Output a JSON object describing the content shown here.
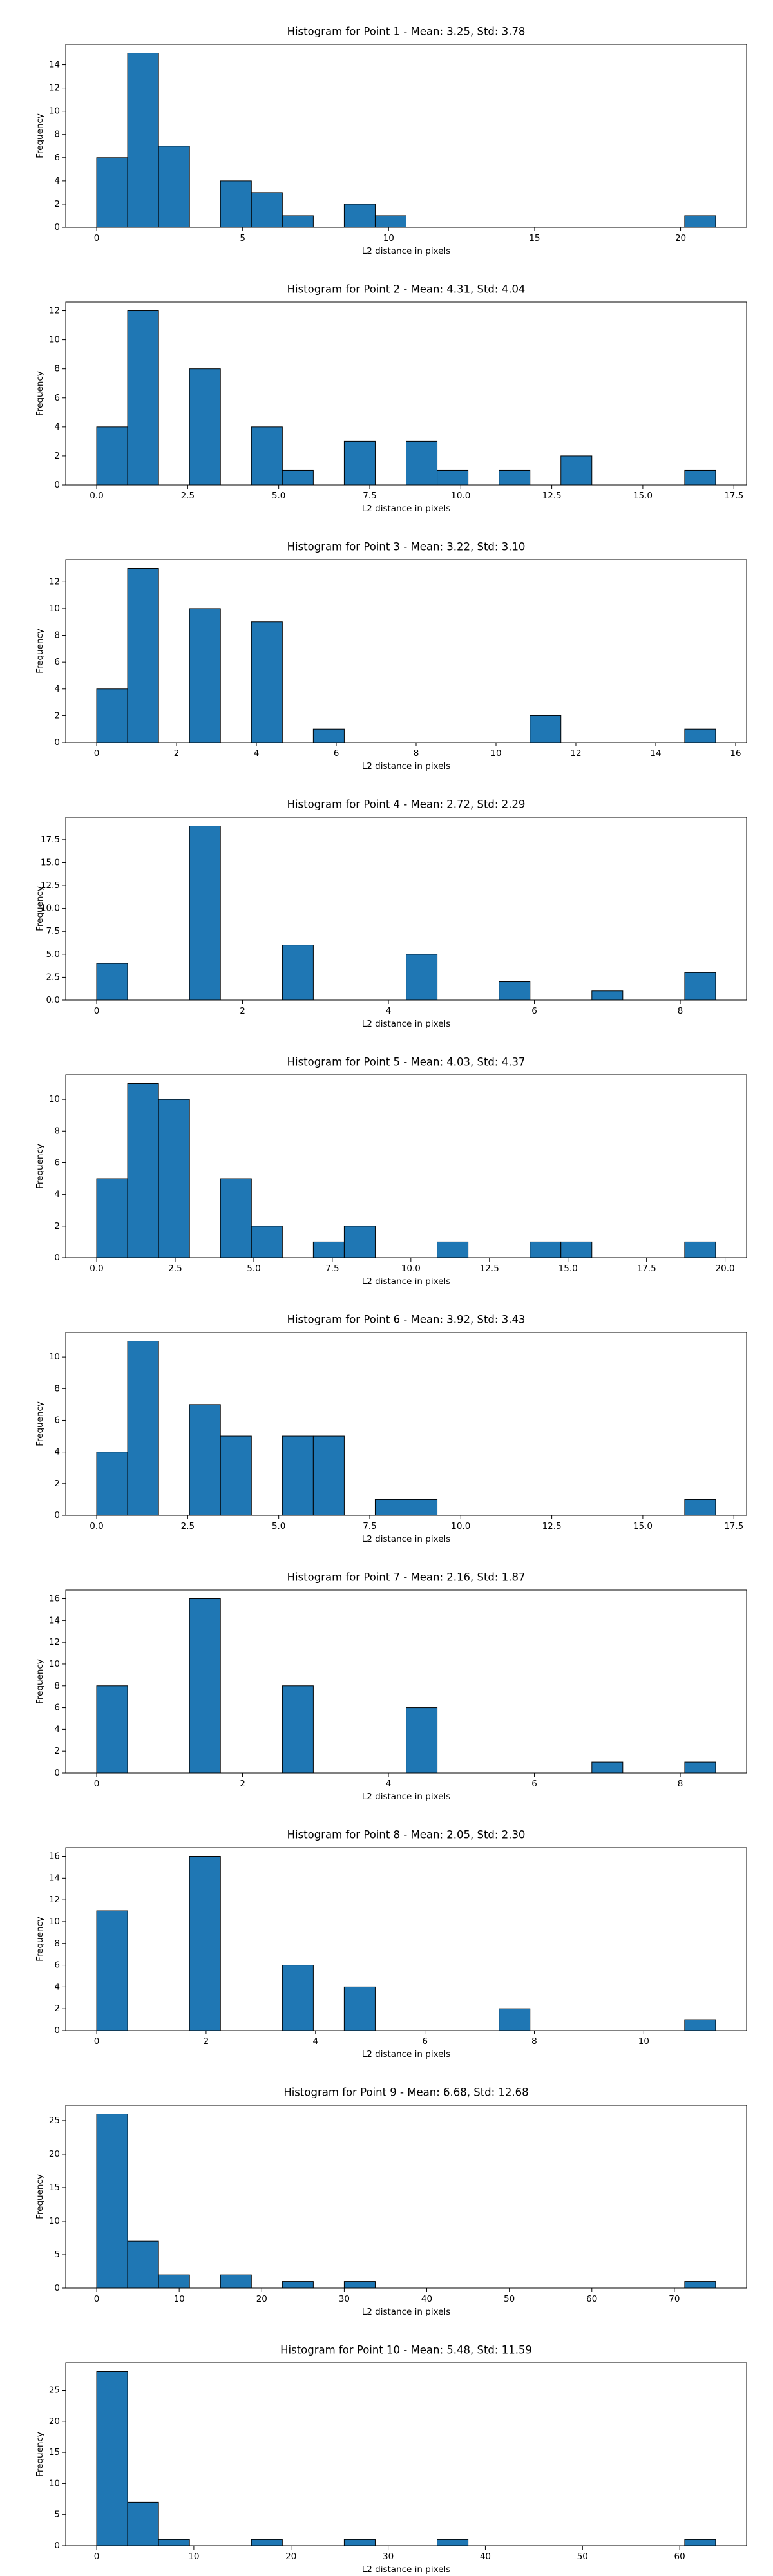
{
  "chart_data": [
    {
      "type": "histogram",
      "title": "Histogram for Point 1 - Mean: 3.25, Std: 3.78",
      "xlabel": "L2 distance in pixels",
      "ylabel": "Frequency",
      "color": "#1f77b4",
      "bins": [
        0,
        1.06,
        2.12,
        3.18,
        4.24,
        5.3,
        6.36,
        7.42,
        8.48,
        9.54,
        10.6,
        11.66,
        12.72,
        13.78,
        14.84,
        15.9,
        16.96,
        18.02,
        19.08,
        20.14,
        21.2
      ],
      "values": [
        6,
        15,
        7,
        0,
        4,
        3,
        1,
        0,
        2,
        1,
        0,
        0,
        0,
        0,
        0,
        0,
        0,
        0,
        0,
        1
      ],
      "xlim": [
        -1.06,
        22.26
      ],
      "xticks": [
        0,
        5,
        10,
        15,
        20
      ],
      "ylim": [
        0,
        15.75
      ],
      "yticks": [
        0,
        2,
        4,
        6,
        8,
        10,
        12,
        14
      ]
    },
    {
      "type": "histogram",
      "title": "Histogram for Point 2 - Mean: 4.31, Std: 4.04",
      "xlabel": "L2 distance in pixels",
      "ylabel": "Frequency",
      "color": "#1f77b4",
      "bins": [
        0,
        0.85,
        1.7,
        2.55,
        3.4,
        4.25,
        5.1,
        5.95,
        6.8,
        7.65,
        8.5,
        9.35,
        10.2,
        11.05,
        11.9,
        12.75,
        13.6,
        14.45,
        15.3,
        16.15,
        17
      ],
      "values": [
        4,
        12,
        0,
        8,
        0,
        4,
        1,
        0,
        3,
        0,
        3,
        1,
        0,
        1,
        0,
        2,
        0,
        0,
        0,
        1
      ],
      "xlim": [
        -0.85,
        17.85
      ],
      "xticks": [
        {
          "value": 0,
          "label": "0.0"
        },
        2.5,
        {
          "value": 5,
          "label": "5.0"
        },
        7.5,
        {
          "value": 10,
          "label": "10.0"
        },
        12.5,
        {
          "value": 15,
          "label": "15.0"
        },
        17.5
      ],
      "ylim": [
        0,
        12.6
      ],
      "yticks": [
        0,
        2,
        4,
        6,
        8,
        10,
        12
      ]
    },
    {
      "type": "histogram",
      "title": "Histogram for Point 3 - Mean: 3.22, Std: 3.10",
      "xlabel": "L2 distance in pixels",
      "ylabel": "Frequency",
      "color": "#1f77b4",
      "bins": [
        0,
        0.775,
        1.55,
        2.325,
        3.1,
        3.875,
        4.65,
        5.425,
        6.2,
        6.975,
        7.75,
        8.525,
        9.3,
        10.075,
        10.85,
        11.625,
        12.4,
        13.175,
        13.95,
        14.725,
        15.5
      ],
      "values": [
        4,
        13,
        0,
        10,
        0,
        9,
        0,
        1,
        0,
        0,
        0,
        0,
        0,
        0,
        2,
        0,
        0,
        0,
        0,
        1
      ],
      "xlim": [
        -0.775,
        16.275
      ],
      "xticks": [
        0,
        2,
        4,
        6,
        8,
        10,
        12,
        14,
        16
      ],
      "ylim": [
        0,
        13.65
      ],
      "yticks": [
        0,
        2,
        4,
        6,
        8,
        10,
        12
      ]
    },
    {
      "type": "histogram",
      "title": "Histogram for Point 4 - Mean: 2.72, Std: 2.29",
      "xlabel": "L2 distance in pixels",
      "ylabel": "Frequency",
      "color": "#1f77b4",
      "bins": [
        0,
        0.424,
        0.849,
        1.273,
        1.697,
        2.121,
        2.546,
        2.97,
        3.394,
        3.818,
        4.243,
        4.667,
        5.091,
        5.515,
        5.94,
        6.364,
        6.788,
        7.212,
        7.637,
        8.061,
        8.485
      ],
      "values": [
        4,
        0,
        0,
        19,
        0,
        0,
        6,
        0,
        0,
        0,
        5,
        0,
        0,
        2,
        0,
        0,
        1,
        0,
        0,
        3
      ],
      "xlim": [
        -0.424,
        8.909
      ],
      "xticks": [
        0,
        2,
        4,
        6,
        8
      ],
      "ylim": [
        0,
        19.95
      ],
      "yticks": [
        {
          "value": 0,
          "label": "0.0"
        },
        2.5,
        {
          "value": 5,
          "label": "5.0"
        },
        7.5,
        {
          "value": 10,
          "label": "10.0"
        },
        12.5,
        {
          "value": 15,
          "label": "15.0"
        },
        17.5
      ]
    },
    {
      "type": "histogram",
      "title": "Histogram for Point 5 - Mean: 4.03, Std: 4.37",
      "xlabel": "L2 distance in pixels",
      "ylabel": "Frequency",
      "color": "#1f77b4",
      "bins": [
        0,
        0.985,
        1.97,
        2.955,
        3.94,
        4.925,
        5.91,
        6.895,
        7.88,
        8.865,
        9.85,
        10.835,
        11.82,
        12.805,
        13.79,
        14.775,
        15.76,
        16.745,
        17.73,
        18.715,
        19.7
      ],
      "values": [
        5,
        11,
        10,
        0,
        5,
        2,
        0,
        1,
        2,
        0,
        0,
        1,
        0,
        0,
        1,
        1,
        0,
        0,
        0,
        1
      ],
      "xlim": [
        -0.985,
        20.685
      ],
      "xticks": [
        {
          "value": 0,
          "label": "0.0"
        },
        2.5,
        {
          "value": 5,
          "label": "5.0"
        },
        7.5,
        {
          "value": 10,
          "label": "10.0"
        },
        12.5,
        {
          "value": 15,
          "label": "15.0"
        },
        17.5,
        {
          "value": 20,
          "label": "20.0"
        }
      ],
      "ylim": [
        0,
        11.55
      ],
      "yticks": [
        0,
        2,
        4,
        6,
        8,
        10
      ]
    },
    {
      "type": "histogram",
      "title": "Histogram for Point 6 - Mean: 3.92, Std: 3.43",
      "xlabel": "L2 distance in pixels",
      "ylabel": "Frequency",
      "color": "#1f77b4",
      "bins": [
        0,
        0.85,
        1.7,
        2.55,
        3.4,
        4.25,
        5.1,
        5.95,
        6.8,
        7.65,
        8.5,
        9.35,
        10.2,
        11.05,
        11.9,
        12.75,
        13.6,
        14.45,
        15.3,
        16.15,
        17
      ],
      "values": [
        4,
        11,
        0,
        7,
        5,
        0,
        5,
        5,
        0,
        1,
        1,
        0,
        0,
        0,
        0,
        0,
        0,
        0,
        0,
        1
      ],
      "xlim": [
        -0.85,
        17.85
      ],
      "xticks": [
        {
          "value": 0,
          "label": "0.0"
        },
        2.5,
        {
          "value": 5,
          "label": "5.0"
        },
        7.5,
        {
          "value": 10,
          "label": "10.0"
        },
        12.5,
        {
          "value": 15,
          "label": "15.0"
        },
        17.5
      ],
      "ylim": [
        0,
        11.55
      ],
      "yticks": [
        0,
        2,
        4,
        6,
        8,
        10
      ]
    },
    {
      "type": "histogram",
      "title": "Histogram for Point 7 - Mean: 2.16, Std: 1.87",
      "xlabel": "L2 distance in pixels",
      "ylabel": "Frequency",
      "color": "#1f77b4",
      "bins": [
        0,
        0.424,
        0.849,
        1.273,
        1.697,
        2.121,
        2.546,
        2.97,
        3.394,
        3.818,
        4.243,
        4.667,
        5.091,
        5.515,
        5.94,
        6.364,
        6.788,
        7.212,
        7.637,
        8.061,
        8.485
      ],
      "values": [
        8,
        0,
        0,
        16,
        0,
        0,
        8,
        0,
        0,
        0,
        6,
        0,
        0,
        0,
        0,
        0,
        1,
        0,
        0,
        1
      ],
      "xlim": [
        -0.424,
        8.909
      ],
      "xticks": [
        0,
        2,
        4,
        6,
        8
      ],
      "ylim": [
        0,
        16.8
      ],
      "yticks": [
        0,
        2,
        4,
        6,
        8,
        10,
        12,
        14,
        16
      ]
    },
    {
      "type": "histogram",
      "title": "Histogram for Point 8 - Mean: 2.05, Std: 2.30",
      "xlabel": "L2 distance in pixels",
      "ylabel": "Frequency",
      "color": "#1f77b4",
      "bins": [
        0,
        0.566,
        1.131,
        1.697,
        2.263,
        2.828,
        3.394,
        3.96,
        4.525,
        5.091,
        5.657,
        6.223,
        6.788,
        7.354,
        7.92,
        8.485,
        9.051,
        9.617,
        10.182,
        10.748,
        11.314
      ],
      "values": [
        11,
        0,
        0,
        16,
        0,
        0,
        6,
        0,
        4,
        0,
        0,
        0,
        0,
        2,
        0,
        0,
        0,
        0,
        0,
        1
      ],
      "xlim": [
        -0.566,
        11.88
      ],
      "xticks": [
        0,
        2,
        4,
        6,
        8,
        10
      ],
      "ylim": [
        0,
        16.8
      ],
      "yticks": [
        0,
        2,
        4,
        6,
        8,
        10,
        12,
        14,
        16
      ]
    },
    {
      "type": "histogram",
      "title": "Histogram for Point 9 - Mean: 6.68, Std: 12.68",
      "xlabel": "L2 distance in pixels",
      "ylabel": "Frequency",
      "color": "#1f77b4",
      "bins": [
        0,
        3.75,
        7.5,
        11.25,
        15,
        18.75,
        22.5,
        26.25,
        30,
        33.75,
        37.5,
        41.25,
        45,
        48.75,
        52.5,
        56.25,
        60,
        63.75,
        67.5,
        71.25,
        75
      ],
      "values": [
        26,
        7,
        2,
        0,
        2,
        0,
        1,
        0,
        1,
        0,
        0,
        0,
        0,
        0,
        0,
        0,
        0,
        0,
        0,
        1
      ],
      "xlim": [
        -3.75,
        78.75
      ],
      "xticks": [
        0,
        10,
        20,
        30,
        40,
        50,
        60,
        70
      ],
      "ylim": [
        0,
        27.3
      ],
      "yticks": [
        0,
        5,
        10,
        15,
        20,
        25
      ]
    },
    {
      "type": "histogram",
      "title": "Histogram for Point 10 - Mean: 5.48, Std: 11.59",
      "xlabel": "L2 distance in pixels",
      "ylabel": "Frequency",
      "color": "#1f77b4",
      "bins": [
        0,
        3.185,
        6.37,
        9.555,
        12.74,
        15.925,
        19.11,
        22.295,
        25.48,
        28.665,
        31.85,
        35.035,
        38.22,
        41.405,
        44.59,
        47.775,
        50.96,
        54.145,
        57.33,
        60.515,
        63.7
      ],
      "values": [
        28,
        7,
        1,
        0,
        0,
        1,
        0,
        0,
        1,
        0,
        0,
        1,
        0,
        0,
        0,
        0,
        0,
        0,
        0,
        1
      ],
      "xlim": [
        -3.185,
        66.885
      ],
      "xticks": [
        0,
        10,
        20,
        30,
        40,
        50,
        60
      ],
      "ylim": [
        0,
        29.4
      ],
      "yticks": [
        0,
        5,
        10,
        15,
        20,
        25
      ]
    }
  ]
}
